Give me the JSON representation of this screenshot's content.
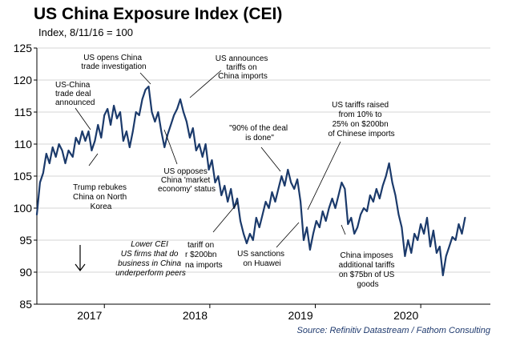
{
  "chart_data": {
    "type": "line",
    "title": "US China Exposure Index (CEI)",
    "subtitle": "Index, 8/11/16 = 100",
    "source": "Source: Refinitiv Datastream / Fathom Consulting",
    "ylim": [
      85,
      125
    ],
    "yticks": [
      "85",
      "90",
      "95",
      "100",
      "105",
      "110",
      "115",
      "120",
      "125"
    ],
    "xlim": [
      2016.36,
      2020.66
    ],
    "xticks": [
      {
        "label": "2017",
        "x": 2017
      },
      {
        "label": "2018",
        "x": 2018
      },
      {
        "label": "2019",
        "x": 2019
      },
      {
        "label": "2020",
        "x": 2020
      }
    ],
    "line_color": "#1b3a6b",
    "series": [
      {
        "name": "US China Exposure Index (CEI)",
        "points": [
          [
            2016.36,
            99.0
          ],
          [
            2016.39,
            104.0
          ],
          [
            2016.42,
            105.5
          ],
          [
            2016.45,
            108.5
          ],
          [
            2016.48,
            107.0
          ],
          [
            2016.51,
            109.5
          ],
          [
            2016.54,
            108.0
          ],
          [
            2016.57,
            110.0
          ],
          [
            2016.6,
            109.0
          ],
          [
            2016.63,
            107.0
          ],
          [
            2016.66,
            109.0
          ],
          [
            2016.7,
            108.0
          ],
          [
            2016.73,
            111.0
          ],
          [
            2016.76,
            110.0
          ],
          [
            2016.79,
            112.0
          ],
          [
            2016.82,
            110.5
          ],
          [
            2016.85,
            112.0
          ],
          [
            2016.88,
            109.0
          ],
          [
            2016.91,
            110.5
          ],
          [
            2016.94,
            113.0
          ],
          [
            2016.97,
            111.0
          ],
          [
            2017.0,
            114.5
          ],
          [
            2017.03,
            115.5
          ],
          [
            2017.06,
            113.0
          ],
          [
            2017.09,
            116.0
          ],
          [
            2017.12,
            114.0
          ],
          [
            2017.15,
            115.0
          ],
          [
            2017.18,
            110.5
          ],
          [
            2017.21,
            112.0
          ],
          [
            2017.24,
            109.5
          ],
          [
            2017.27,
            112.0
          ],
          [
            2017.3,
            115.0
          ],
          [
            2017.33,
            114.5
          ],
          [
            2017.36,
            117.0
          ],
          [
            2017.39,
            118.5
          ],
          [
            2017.42,
            119.0
          ],
          [
            2017.45,
            115.0
          ],
          [
            2017.48,
            113.5
          ],
          [
            2017.51,
            115.0
          ],
          [
            2017.54,
            112.0
          ],
          [
            2017.57,
            109.5
          ],
          [
            2017.6,
            111.5
          ],
          [
            2017.63,
            113.0
          ],
          [
            2017.66,
            114.5
          ],
          [
            2017.69,
            115.5
          ],
          [
            2017.72,
            117.0
          ],
          [
            2017.75,
            115.0
          ],
          [
            2017.78,
            113.5
          ],
          [
            2017.81,
            111.0
          ],
          [
            2017.84,
            112.5
          ],
          [
            2017.87,
            109.0
          ],
          [
            2017.9,
            110.0
          ],
          [
            2017.93,
            108.0
          ],
          [
            2017.96,
            110.0
          ],
          [
            2017.99,
            106.0
          ],
          [
            2018.02,
            107.5
          ],
          [
            2018.05,
            104.0
          ],
          [
            2018.08,
            105.0
          ],
          [
            2018.11,
            102.0
          ],
          [
            2018.14,
            103.5
          ],
          [
            2018.17,
            101.0
          ],
          [
            2018.2,
            103.0
          ],
          [
            2018.23,
            100.0
          ],
          [
            2018.26,
            101.5
          ],
          [
            2018.29,
            98.0
          ],
          [
            2018.32,
            96.0
          ],
          [
            2018.35,
            94.5
          ],
          [
            2018.38,
            96.0
          ],
          [
            2018.41,
            95.0
          ],
          [
            2018.44,
            98.5
          ],
          [
            2018.47,
            97.0
          ],
          [
            2018.5,
            99.0
          ],
          [
            2018.53,
            101.0
          ],
          [
            2018.56,
            100.0
          ],
          [
            2018.59,
            102.5
          ],
          [
            2018.62,
            101.0
          ],
          [
            2018.65,
            103.0
          ],
          [
            2018.68,
            105.0
          ],
          [
            2018.71,
            103.5
          ],
          [
            2018.74,
            106.0
          ],
          [
            2018.77,
            104.0
          ],
          [
            2018.8,
            103.0
          ],
          [
            2018.83,
            104.5
          ],
          [
            2018.86,
            101.0
          ],
          [
            2018.89,
            95.0
          ],
          [
            2018.92,
            97.0
          ],
          [
            2018.95,
            93.5
          ],
          [
            2018.98,
            96.0
          ],
          [
            2019.01,
            98.0
          ],
          [
            2019.04,
            97.0
          ],
          [
            2019.07,
            99.5
          ],
          [
            2019.1,
            98.0
          ],
          [
            2019.13,
            100.0
          ],
          [
            2019.16,
            101.5
          ],
          [
            2019.19,
            100.0
          ],
          [
            2019.22,
            102.0
          ],
          [
            2019.25,
            104.0
          ],
          [
            2019.28,
            103.0
          ],
          [
            2019.31,
            97.5
          ],
          [
            2019.34,
            98.5
          ],
          [
            2019.37,
            96.0
          ],
          [
            2019.4,
            97.0
          ],
          [
            2019.43,
            99.0
          ],
          [
            2019.46,
            100.0
          ],
          [
            2019.49,
            99.5
          ],
          [
            2019.52,
            102.0
          ],
          [
            2019.55,
            101.0
          ],
          [
            2019.58,
            103.0
          ],
          [
            2019.61,
            101.5
          ],
          [
            2019.64,
            103.5
          ],
          [
            2019.67,
            105.0
          ],
          [
            2019.7,
            107.0
          ],
          [
            2019.73,
            104.0
          ],
          [
            2019.76,
            102.0
          ],
          [
            2019.79,
            99.0
          ],
          [
            2019.82,
            97.0
          ],
          [
            2019.85,
            92.5
          ],
          [
            2019.88,
            95.0
          ],
          [
            2019.91,
            93.0
          ],
          [
            2019.94,
            96.0
          ],
          [
            2019.97,
            95.0
          ],
          [
            2020.0,
            97.5
          ],
          [
            2020.03,
            96.0
          ],
          [
            2020.06,
            98.5
          ],
          [
            2020.09,
            94.0
          ],
          [
            2020.12,
            96.5
          ],
          [
            2020.15,
            93.0
          ],
          [
            2020.18,
            94.0
          ],
          [
            2020.21,
            89.5
          ],
          [
            2020.24,
            92.5
          ],
          [
            2020.27,
            94.0
          ],
          [
            2020.3,
            95.5
          ],
          [
            2020.33,
            95.0
          ],
          [
            2020.36,
            97.5
          ],
          [
            2020.39,
            96.0
          ],
          [
            2020.42,
            98.5
          ]
        ]
      }
    ],
    "annotations": [
      {
        "id": "trade-deal",
        "lines": [
          "US-China",
          "trade deal",
          "announced"
        ]
      },
      {
        "id": "trade-investigation",
        "lines": [
          "US opens China",
          "trade investigation"
        ]
      },
      {
        "id": "tariffs-announce",
        "lines": [
          "US announces",
          "tariffs on",
          "China imports"
        ]
      },
      {
        "id": "trump-rebukes",
        "lines": [
          "Trump rebukes",
          "China on North",
          "Korea"
        ]
      },
      {
        "id": "market-economy",
        "lines": [
          "US opposes",
          "China 'market",
          "economy' status"
        ]
      },
      {
        "id": "deal-done",
        "lines": [
          "\"90% of the deal",
          "is done\""
        ]
      },
      {
        "id": "tariffs-raised",
        "lines": [
          "US tariffs raised",
          "from 10% to",
          "25% on $200bn",
          "of Chinese imports"
        ]
      },
      {
        "id": "tariff-200bn",
        "lines": [
          "tariff on",
          "r $200bn",
          "na imports"
        ]
      },
      {
        "id": "huawei",
        "lines": [
          "US sanctions",
          "on Huawei"
        ]
      },
      {
        "id": "china-imposes",
        "lines": [
          "China imposes",
          "additional tariffs",
          "on $75bn of US",
          "goods"
        ]
      },
      {
        "id": "lower-cei",
        "lines": [
          "Lower CEI",
          "US firms that do",
          "business in China",
          "underperform peers"
        ]
      }
    ]
  }
}
